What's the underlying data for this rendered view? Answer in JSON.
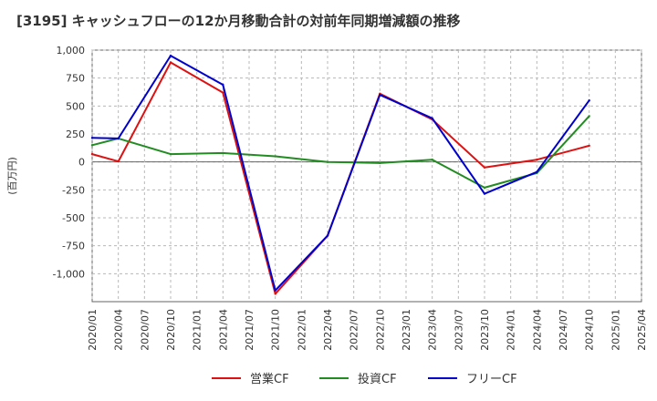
{
  "chart_data": {
    "type": "line",
    "title": "[3195]  キャッシュフローの12か月移動合計の対前年同期増減額の推移",
    "ylabel": "(百万円)",
    "xlabel": "",
    "ylim": [
      -1250,
      1000
    ],
    "yticks": [
      1000,
      750,
      500,
      250,
      0,
      -250,
      -500,
      -750,
      -1000
    ],
    "ytick_labels": [
      "1,000",
      "750",
      "500",
      "250",
      "0",
      "-250",
      "-500",
      "-750",
      "-1,000"
    ],
    "x": [
      "2020/01",
      "2020/04",
      "2020/07",
      "2020/10",
      "2021/01",
      "2021/04",
      "2021/07",
      "2021/10",
      "2022/01",
      "2022/04",
      "2022/07",
      "2022/10",
      "2023/01",
      "2023/04",
      "2023/07",
      "2023/10",
      "2024/01",
      "2024/04",
      "2024/07",
      "2024/10",
      "2025/01",
      "2025/04"
    ],
    "grid": true,
    "legend_position": "bottom",
    "series": [
      {
        "name": "営業CF",
        "color": "#dd1111",
        "values": [
          70,
          5,
          null,
          890,
          null,
          620,
          null,
          -1180,
          null,
          -660,
          null,
          610,
          null,
          380,
          null,
          -50,
          null,
          20,
          null,
          145,
          null,
          null
        ]
      },
      {
        "name": "投資CF",
        "color": "#228b22",
        "values": [
          150,
          210,
          null,
          70,
          null,
          80,
          null,
          50,
          null,
          0,
          null,
          -10,
          null,
          20,
          null,
          -230,
          null,
          -100,
          null,
          410,
          null,
          null
        ]
      },
      {
        "name": "フリーCF",
        "color": "#0000cc",
        "values": [
          215,
          210,
          null,
          950,
          null,
          690,
          null,
          -1150,
          null,
          -660,
          null,
          600,
          null,
          390,
          null,
          -285,
          null,
          -90,
          null,
          550,
          null,
          null
        ]
      }
    ]
  }
}
